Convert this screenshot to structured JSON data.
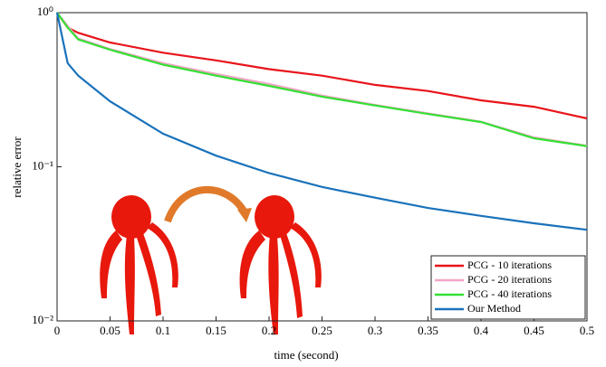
{
  "chart_data": {
    "type": "line",
    "xlabel": "time (second)",
    "ylabel": "relative error",
    "x": [
      0,
      0.01,
      0.02,
      0.05,
      0.1,
      0.15,
      0.2,
      0.25,
      0.3,
      0.35,
      0.4,
      0.45,
      0.5
    ],
    "series": [
      {
        "name": "PCG - 10 iterations",
        "color": "#e8141a",
        "values": [
          1,
          0.8,
          0.74,
          0.64,
          0.55,
          0.49,
          0.43,
          0.39,
          0.34,
          0.31,
          0.27,
          0.245,
          0.206
        ]
      },
      {
        "name": "PCG - 20 iterations",
        "color": "#f4a6c8",
        "values": [
          1,
          0.82,
          0.68,
          0.58,
          0.47,
          0.4,
          0.345,
          0.29,
          0.252,
          0.222,
          0.196,
          0.155,
          0.137
        ]
      },
      {
        "name": "PCG - 40 iterations",
        "color": "#33e033",
        "values": [
          1,
          0.8,
          0.67,
          0.575,
          0.46,
          0.39,
          0.335,
          0.285,
          0.25,
          0.22,
          0.195,
          0.153,
          0.136
        ]
      },
      {
        "name": "Our Method",
        "color": "#1a72bb",
        "values": [
          1,
          0.47,
          0.39,
          0.266,
          0.164,
          0.118,
          0.091,
          0.074,
          0.063,
          0.054,
          0.048,
          0.043,
          0.039
        ]
      }
    ],
    "xlim": [
      0,
      0.5
    ],
    "xticks": [
      0,
      0.05,
      0.1,
      0.15,
      0.2,
      0.25,
      0.3,
      0.35,
      0.4,
      0.45,
      0.5
    ],
    "ylim": [
      0.01,
      1
    ],
    "yscale": "log",
    "yticks": [
      {
        "value": 0.01,
        "label": "10⁻²"
      },
      {
        "value": 0.1,
        "label": "10⁻¹"
      },
      {
        "value": 1,
        "label": "10⁰"
      }
    ],
    "legend": "lower right"
  }
}
